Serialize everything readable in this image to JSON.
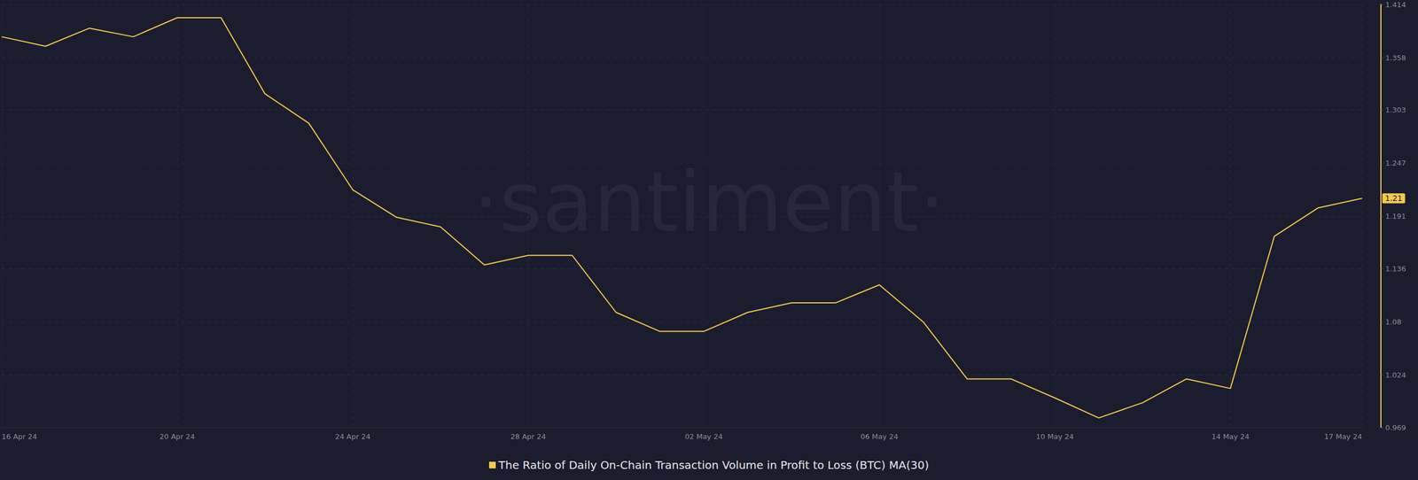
{
  "chart_data": {
    "type": "line",
    "annotations": [
      "·santiment·"
    ],
    "categories": [
      "16 Apr 24",
      null,
      null,
      null,
      "20 Apr 24",
      null,
      null,
      null,
      "24 Apr 24",
      null,
      null,
      null,
      "28 Apr 24",
      null,
      null,
      null,
      "02 May 24",
      null,
      null,
      null,
      "06 May 24",
      null,
      null,
      null,
      "10 May 24",
      null,
      null,
      null,
      "14 May 24",
      null,
      null,
      "17 May 24"
    ],
    "series": [
      {
        "name": "The Ratio of Daily On-Chain Transaction Volume in Profit to Loss (BTC) MA(30)",
        "color": "#f3c94e",
        "values": [
          1.38,
          1.37,
          1.389,
          1.38,
          1.4,
          1.4,
          1.32,
          1.289,
          1.219,
          1.19,
          1.18,
          1.14,
          1.15,
          1.15,
          1.09,
          1.07,
          1.07,
          1.09,
          1.1,
          1.1,
          1.119,
          1.08,
          1.02,
          1.02,
          1.0,
          0.979,
          0.995,
          1.02,
          1.01,
          1.17,
          1.2,
          1.21
        ]
      }
    ],
    "ylim": [
      0.969,
      1.414
    ],
    "yticks": [
      0.969,
      1.024,
      1.08,
      1.136,
      1.191,
      1.247,
      1.303,
      1.358,
      1.414
    ],
    "grid": true,
    "legend": "bottom"
  }
}
